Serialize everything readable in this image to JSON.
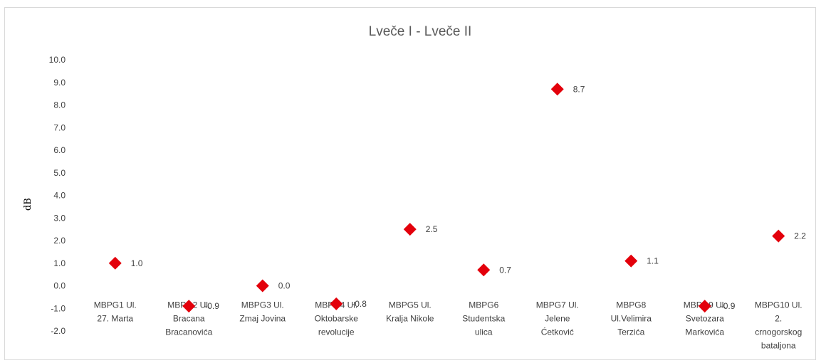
{
  "chart_data": {
    "type": "scatter",
    "title": "Lveče I - Lveče II",
    "ylabel": "dB",
    "ylim": [
      -2.0,
      10.0
    ],
    "ytick_step": 1.0,
    "categories": [
      [
        "MBPG1 Ul.",
        "27. Marta"
      ],
      [
        "MBPG2 Ul.",
        "Bracana",
        "Bracanovića"
      ],
      [
        "MBPG3 Ul.",
        "Zmaj Jovina"
      ],
      [
        "MBPG4 Ul.",
        "Oktobarske",
        "revolucije"
      ],
      [
        "MBPG5 Ul.",
        "Kralja Nikole"
      ],
      [
        "MBPG6",
        "Studentska",
        "ulica"
      ],
      [
        "MBPG7  Ul.",
        "Jelene",
        "Ćetković"
      ],
      [
        "MBPG8",
        "Ul.Velimira",
        "Terzića"
      ],
      [
        "MBPG9 Ul.",
        "Svetozara",
        "Markovića"
      ],
      [
        "MBPG10 Ul.",
        "2.",
        "crnogorskog",
        "bataljona"
      ]
    ],
    "values": [
      1.0,
      -0.9,
      0.0,
      -0.8,
      2.5,
      0.7,
      8.7,
      1.1,
      -0.9,
      2.2
    ],
    "data_labels": [
      "1.0",
      "-0.9",
      "0.0",
      "-0.8",
      "2.5",
      "0.7",
      "8.7",
      "1.1",
      "-0.9",
      "2.2"
    ],
    "marker_color": "#e3000b",
    "grid": false,
    "legend": "none"
  }
}
